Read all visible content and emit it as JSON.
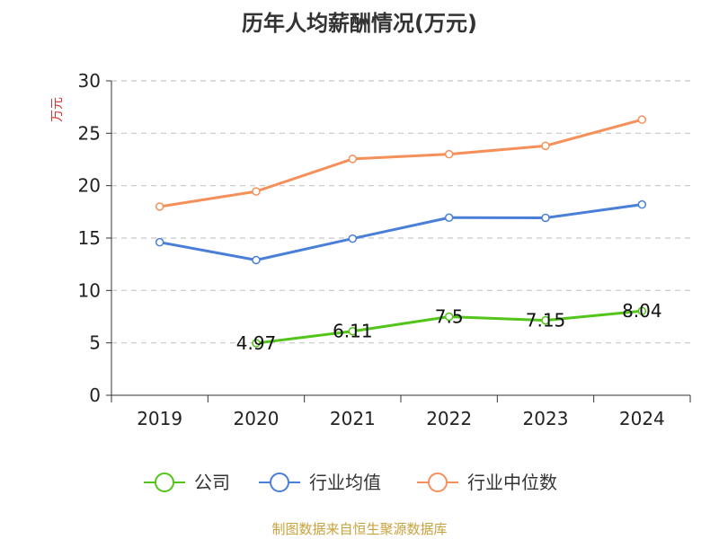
{
  "title": "历年人均薪酬情况(万元)",
  "source": "制图数据来自恒生聚源数据库",
  "chart_data": {
    "type": "line",
    "title": "历年人均薪酬情况(万元)",
    "ylabel": "万元",
    "xlabel": "",
    "categories": [
      "2019",
      "2020",
      "2021",
      "2022",
      "2023",
      "2024"
    ],
    "ylim": [
      0,
      30
    ],
    "yticks": [
      0,
      5,
      10,
      15,
      20,
      25,
      30
    ],
    "grid": "horizontal-dashed",
    "legend_position": "bottom",
    "series": [
      {
        "name": "公司",
        "color": "#52c41a",
        "values": [
          null,
          4.97,
          6.11,
          7.5,
          7.15,
          8.04
        ],
        "labels": [
          null,
          "4.97",
          "6.11",
          "7.5",
          "7.15",
          "8.04"
        ]
      },
      {
        "name": "行业均值",
        "color": "#4a7fd8",
        "values": [
          14.6,
          12.9,
          14.95,
          16.95,
          16.93,
          18.2
        ]
      },
      {
        "name": "行业中位数",
        "color": "#f5905a",
        "values": [
          18.0,
          19.45,
          22.55,
          23.0,
          23.8,
          26.3
        ]
      }
    ]
  }
}
